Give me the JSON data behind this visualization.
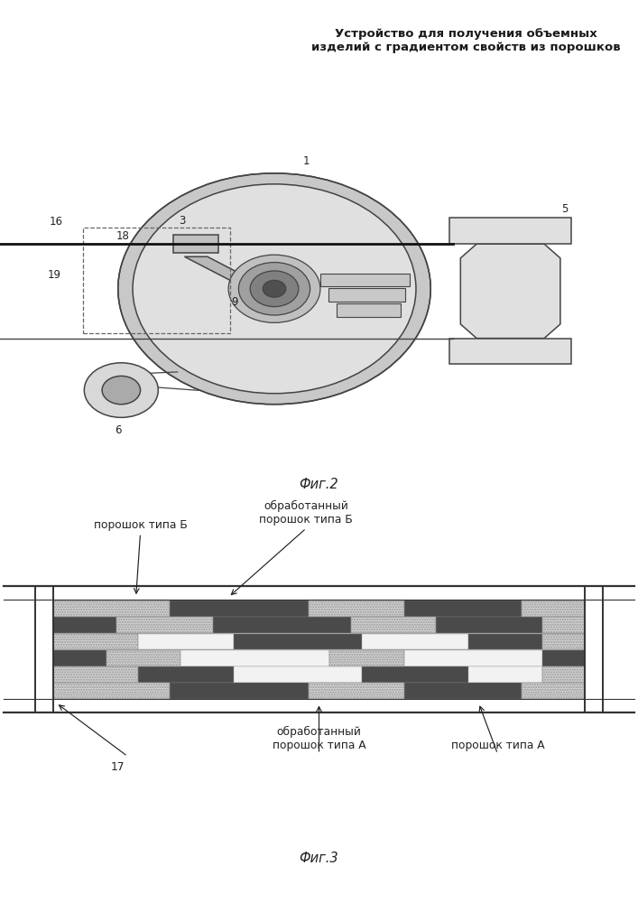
{
  "title_line1": "Устройство для получения объемных",
  "title_line2": "изделий с градиентом свойств из порошков",
  "fig2_caption": "Фиг.2",
  "fig3_caption": "Фиг.3",
  "label_17": "17",
  "label_1": "1",
  "label_3": "3",
  "label_5": "5",
  "label_6": "6",
  "label_9": "9",
  "label_16": "16",
  "label_18": "18",
  "label_19": "19",
  "text_poroshok_B": "порошок типа Б",
  "text_obrab_B": "обработанный\nпорошок типа Б",
  "text_obrab_A": "обработанный\nпорошок типа А",
  "text_poroshok_A": "порошок типа А",
  "bg_color": "#ffffff"
}
